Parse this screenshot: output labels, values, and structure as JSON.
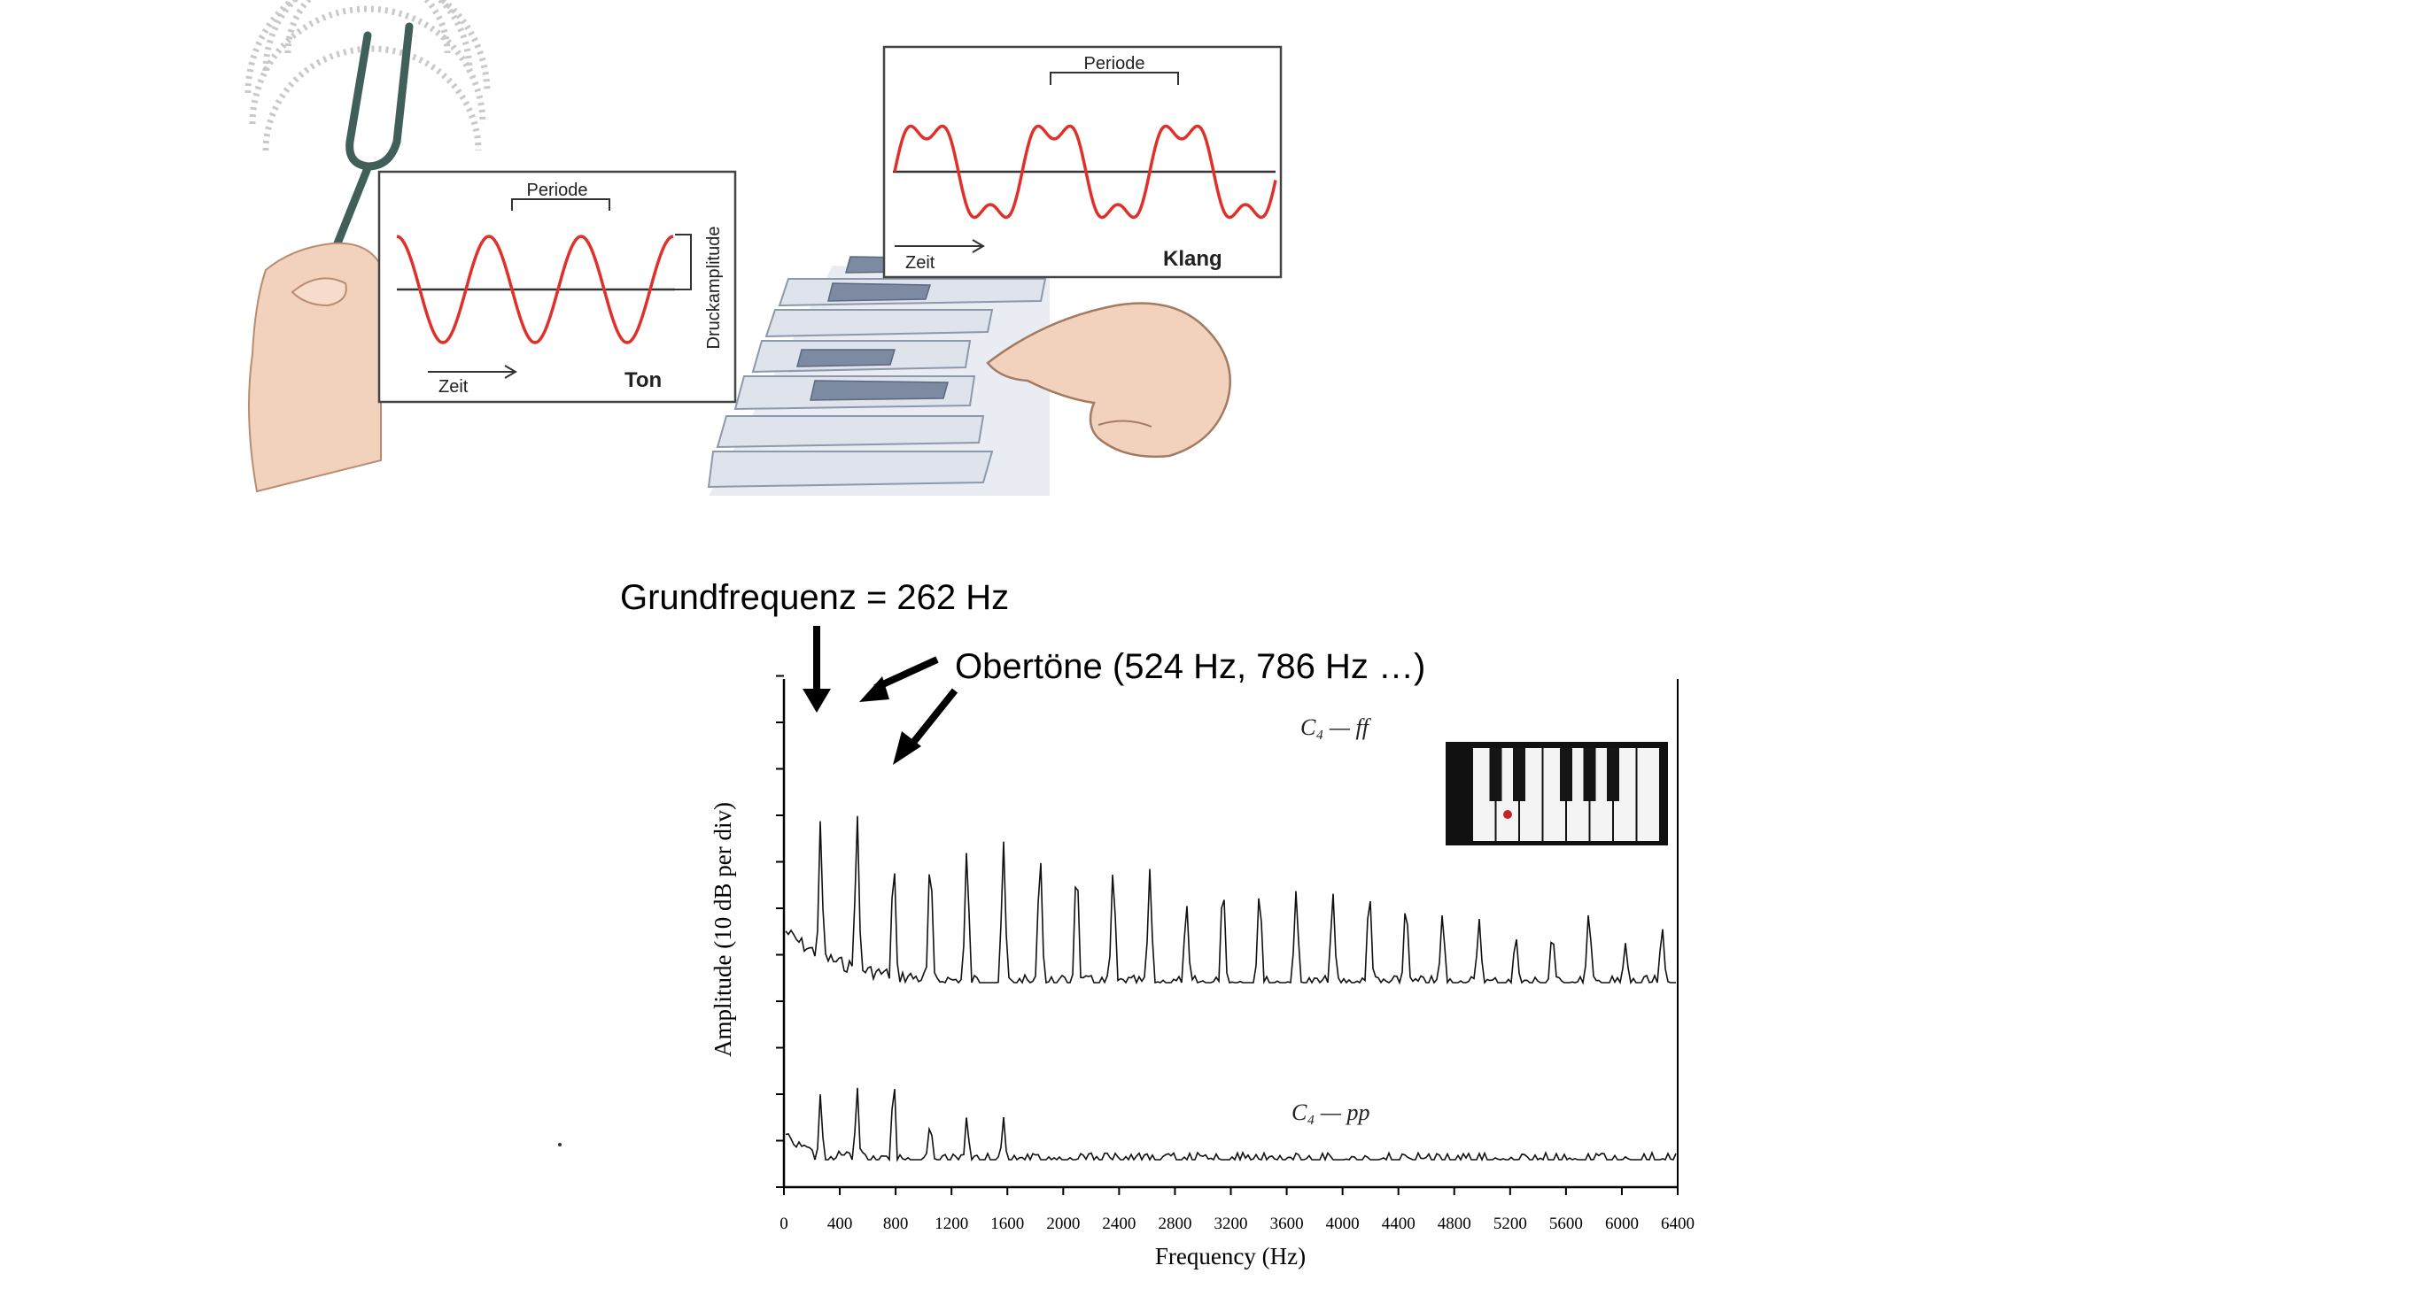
{
  "top_left_panel": {
    "period_label": "Periode",
    "amplitude_label": "Druckamplitude",
    "time_label": "Zeit",
    "type_label": "Ton"
  },
  "top_right_panel": {
    "period_label": "Periode",
    "time_label": "Zeit",
    "type_label": "Klang"
  },
  "annotations": {
    "fundamental": "Grundfrequenz = 262 Hz",
    "overtones": "Obertöne (524 Hz, 786 Hz …)"
  },
  "spectrum": {
    "xlabel": "Frequency (Hz)",
    "ylabel": "Amplitude (10 dB per div)",
    "xticks": [
      "0",
      "400",
      "800",
      "1200",
      "1600",
      "2000",
      "2400",
      "2800",
      "3200",
      "3600",
      "4000",
      "4400",
      "4800",
      "5200",
      "5600",
      "6000",
      "6400"
    ],
    "trace_ff": "C₄ — ff",
    "trace_pp": "C₄ — pp",
    "colors": {
      "wave": "#e0302a",
      "axis": "#000000",
      "key_marker": "#c0262b"
    },
    "icons": [
      "tuning-fork-icon",
      "hand-icon",
      "piano-keys-icon",
      "finger-pointing-icon",
      "keyboard-inset-icon"
    ]
  }
}
